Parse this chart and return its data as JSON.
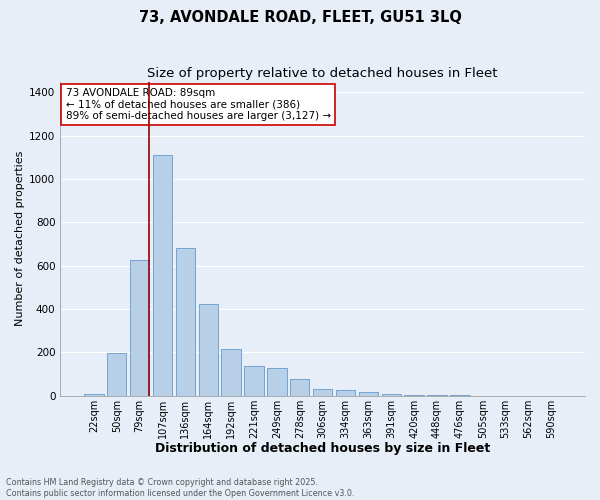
{
  "title1": "73, AVONDALE ROAD, FLEET, GU51 3LQ",
  "title2": "Size of property relative to detached houses in Fleet",
  "xlabel": "Distribution of detached houses by size in Fleet",
  "ylabel": "Number of detached properties",
  "categories": [
    "22sqm",
    "50sqm",
    "79sqm",
    "107sqm",
    "136sqm",
    "164sqm",
    "192sqm",
    "221sqm",
    "249sqm",
    "278sqm",
    "306sqm",
    "334sqm",
    "363sqm",
    "391sqm",
    "420sqm",
    "448sqm",
    "476sqm",
    "505sqm",
    "533sqm",
    "562sqm",
    "590sqm"
  ],
  "values": [
    10,
    195,
    625,
    1110,
    680,
    425,
    215,
    135,
    130,
    75,
    30,
    25,
    15,
    10,
    5,
    2,
    1,
    0,
    0,
    0,
    0
  ],
  "bar_color": "#b8cfe8",
  "bar_edge_color": "#6699cc",
  "vline_index": 2,
  "vline_color": "#990000",
  "annotation_line1": "73 AVONDALE ROAD: 89sqm",
  "annotation_line2": "← 11% of detached houses are smaller (386)",
  "annotation_line3": "89% of semi-detached houses are larger (3,127) →",
  "annotation_box_color": "#ffffff",
  "annotation_box_edge": "#cc0000",
  "ylim": [
    0,
    1450
  ],
  "yticks": [
    0,
    200,
    400,
    600,
    800,
    1000,
    1200,
    1400
  ],
  "footer": "Contains HM Land Registry data © Crown copyright and database right 2025.\nContains public sector information licensed under the Open Government Licence v3.0.",
  "bg_color": "#e8eef8",
  "grid_color": "#ffffff",
  "title_fontsize": 10.5,
  "subtitle_fontsize": 9.5,
  "xlabel_fontsize": 9,
  "ylabel_fontsize": 8,
  "tick_fontsize": 7,
  "annotation_fontsize": 7.5,
  "footer_fontsize": 5.8
}
